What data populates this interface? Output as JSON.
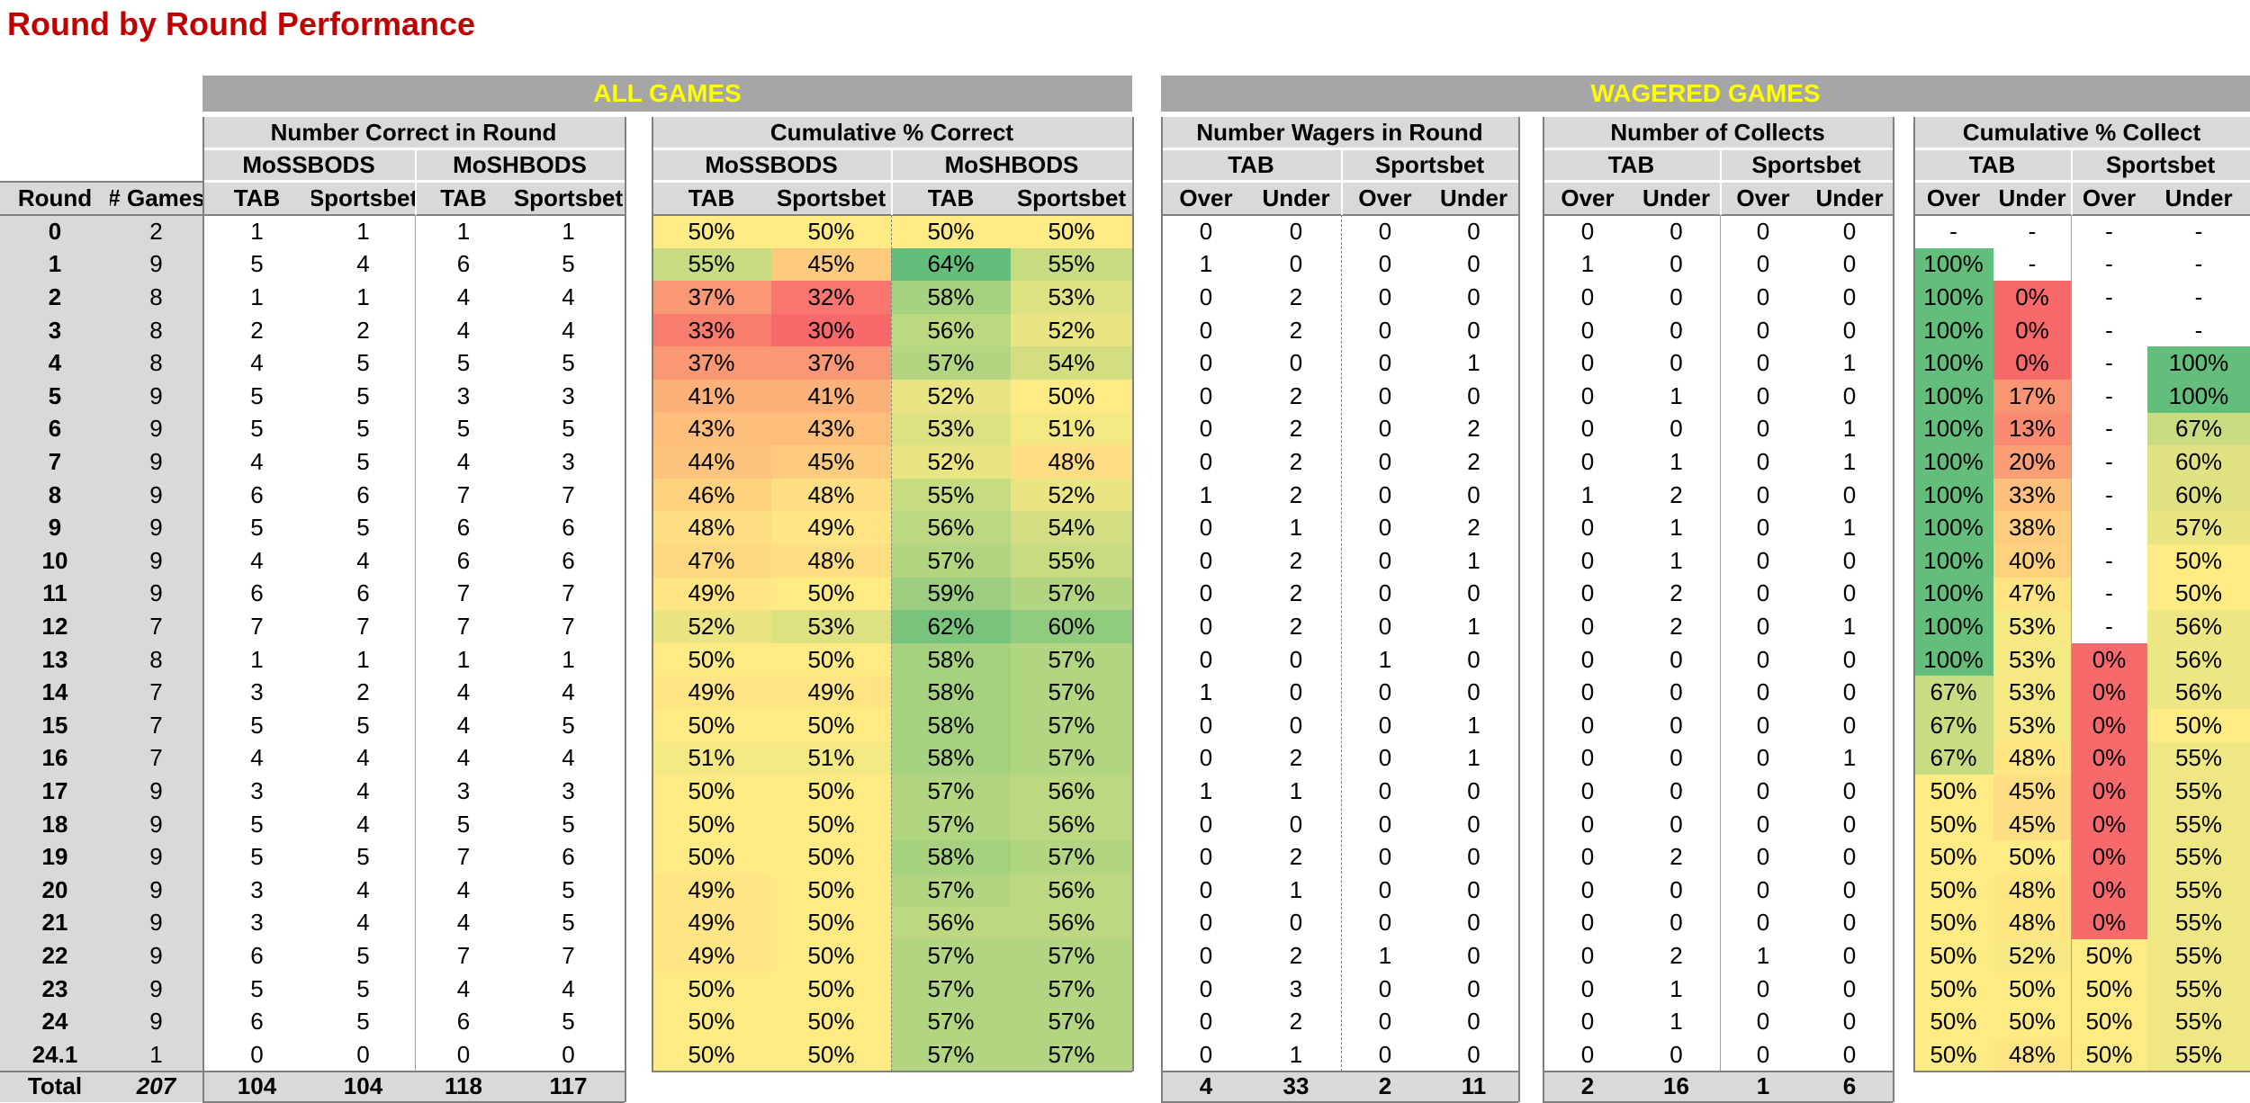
{
  "title": "Round by Round Performance",
  "banners": {
    "all_games": "ALL GAMES",
    "wagered_games": "WAGERED GAMES"
  },
  "groups": [
    {
      "key": "g1",
      "label": "Number Correct in Round",
      "subs": [
        "MoSSBODS",
        "MoSHBODS"
      ],
      "leaf": [
        "TAB",
        "Sportsbet",
        "TAB",
        "Sportsbet"
      ]
    },
    {
      "key": "g2",
      "label": "Cumulative % Correct",
      "subs": [
        "MoSSBODS",
        "MoSHBODS"
      ],
      "leaf": [
        "TAB",
        "Sportsbet",
        "TAB",
        "Sportsbet"
      ]
    },
    {
      "key": "g3",
      "label": "Number Wagers in Round",
      "subs": [
        "TAB",
        "Sportsbet"
      ],
      "leaf": [
        "Over",
        "Under",
        "Over",
        "Under"
      ]
    },
    {
      "key": "g4",
      "label": "Number of Collects",
      "subs": [
        "TAB",
        "Sportsbet"
      ],
      "leaf": [
        "Over",
        "Under",
        "Over",
        "Under"
      ]
    },
    {
      "key": "g5",
      "label": "Cumulative % Collect",
      "subs": [
        "TAB",
        "Sportsbet"
      ],
      "leaf": [
        "Over",
        "Under",
        "Over",
        "Under"
      ]
    }
  ],
  "row_headers": {
    "round": "Round",
    "games": "# Games"
  },
  "rows": [
    {
      "round": "0",
      "games": "2",
      "correct": [
        "1",
        "1",
        "1",
        "1"
      ],
      "cum": [
        "50%",
        "50%",
        "50%",
        "50%"
      ],
      "wagers": [
        "0",
        "0",
        "0",
        "0"
      ],
      "collects": [
        "0",
        "0",
        "0",
        "0"
      ],
      "collect_pct": [
        "-",
        "-",
        "-",
        "-"
      ]
    },
    {
      "round": "1",
      "games": "9",
      "correct": [
        "5",
        "4",
        "6",
        "5"
      ],
      "cum": [
        "55%",
        "45%",
        "64%",
        "55%"
      ],
      "wagers": [
        "1",
        "0",
        "0",
        "0"
      ],
      "collects": [
        "1",
        "0",
        "0",
        "0"
      ],
      "collect_pct": [
        "100%",
        "-",
        "-",
        "-"
      ]
    },
    {
      "round": "2",
      "games": "8",
      "correct": [
        "1",
        "1",
        "4",
        "4"
      ],
      "cum": [
        "37%",
        "32%",
        "58%",
        "53%"
      ],
      "wagers": [
        "0",
        "2",
        "0",
        "0"
      ],
      "collects": [
        "0",
        "0",
        "0",
        "0"
      ],
      "collect_pct": [
        "100%",
        "0%",
        "-",
        "-"
      ]
    },
    {
      "round": "3",
      "games": "8",
      "correct": [
        "2",
        "2",
        "4",
        "4"
      ],
      "cum": [
        "33%",
        "30%",
        "56%",
        "52%"
      ],
      "wagers": [
        "0",
        "2",
        "0",
        "0"
      ],
      "collects": [
        "0",
        "0",
        "0",
        "0"
      ],
      "collect_pct": [
        "100%",
        "0%",
        "-",
        "-"
      ]
    },
    {
      "round": "4",
      "games": "8",
      "correct": [
        "4",
        "5",
        "5",
        "5"
      ],
      "cum": [
        "37%",
        "37%",
        "57%",
        "54%"
      ],
      "wagers": [
        "0",
        "0",
        "0",
        "1"
      ],
      "collects": [
        "0",
        "0",
        "0",
        "1"
      ],
      "collect_pct": [
        "100%",
        "0%",
        "-",
        "100%"
      ]
    },
    {
      "round": "5",
      "games": "9",
      "correct": [
        "5",
        "5",
        "3",
        "3"
      ],
      "cum": [
        "41%",
        "41%",
        "52%",
        "50%"
      ],
      "wagers": [
        "0",
        "2",
        "0",
        "0"
      ],
      "collects": [
        "0",
        "1",
        "0",
        "0"
      ],
      "collect_pct": [
        "100%",
        "17%",
        "-",
        "100%"
      ]
    },
    {
      "round": "6",
      "games": "9",
      "correct": [
        "5",
        "5",
        "5",
        "5"
      ],
      "cum": [
        "43%",
        "43%",
        "53%",
        "51%"
      ],
      "wagers": [
        "0",
        "2",
        "0",
        "2"
      ],
      "collects": [
        "0",
        "0",
        "0",
        "1"
      ],
      "collect_pct": [
        "100%",
        "13%",
        "-",
        "67%"
      ]
    },
    {
      "round": "7",
      "games": "9",
      "correct": [
        "4",
        "5",
        "4",
        "3"
      ],
      "cum": [
        "44%",
        "45%",
        "52%",
        "48%"
      ],
      "wagers": [
        "0",
        "2",
        "0",
        "2"
      ],
      "collects": [
        "0",
        "1",
        "0",
        "1"
      ],
      "collect_pct": [
        "100%",
        "20%",
        "-",
        "60%"
      ]
    },
    {
      "round": "8",
      "games": "9",
      "correct": [
        "6",
        "6",
        "7",
        "7"
      ],
      "cum": [
        "46%",
        "48%",
        "55%",
        "52%"
      ],
      "wagers": [
        "1",
        "2",
        "0",
        "0"
      ],
      "collects": [
        "1",
        "2",
        "0",
        "0"
      ],
      "collect_pct": [
        "100%",
        "33%",
        "-",
        "60%"
      ]
    },
    {
      "round": "9",
      "games": "9",
      "correct": [
        "5",
        "5",
        "6",
        "6"
      ],
      "cum": [
        "48%",
        "49%",
        "56%",
        "54%"
      ],
      "wagers": [
        "0",
        "1",
        "0",
        "2"
      ],
      "collects": [
        "0",
        "1",
        "0",
        "1"
      ],
      "collect_pct": [
        "100%",
        "38%",
        "-",
        "57%"
      ]
    },
    {
      "round": "10",
      "games": "9",
      "correct": [
        "4",
        "4",
        "6",
        "6"
      ],
      "cum": [
        "47%",
        "48%",
        "57%",
        "55%"
      ],
      "wagers": [
        "0",
        "2",
        "0",
        "1"
      ],
      "collects": [
        "0",
        "1",
        "0",
        "0"
      ],
      "collect_pct": [
        "100%",
        "40%",
        "-",
        "50%"
      ]
    },
    {
      "round": "11",
      "games": "9",
      "correct": [
        "6",
        "6",
        "7",
        "7"
      ],
      "cum": [
        "49%",
        "50%",
        "59%",
        "57%"
      ],
      "wagers": [
        "0",
        "2",
        "0",
        "0"
      ],
      "collects": [
        "0",
        "2",
        "0",
        "0"
      ],
      "collect_pct": [
        "100%",
        "47%",
        "-",
        "50%"
      ]
    },
    {
      "round": "12",
      "games": "7",
      "correct": [
        "7",
        "7",
        "7",
        "7"
      ],
      "cum": [
        "52%",
        "53%",
        "62%",
        "60%"
      ],
      "wagers": [
        "0",
        "2",
        "0",
        "1"
      ],
      "collects": [
        "0",
        "2",
        "0",
        "1"
      ],
      "collect_pct": [
        "100%",
        "53%",
        "-",
        "56%"
      ]
    },
    {
      "round": "13",
      "games": "8",
      "correct": [
        "1",
        "1",
        "1",
        "1"
      ],
      "cum": [
        "50%",
        "50%",
        "58%",
        "57%"
      ],
      "wagers": [
        "0",
        "0",
        "1",
        "0"
      ],
      "collects": [
        "0",
        "0",
        "0",
        "0"
      ],
      "collect_pct": [
        "100%",
        "53%",
        "0%",
        "56%"
      ]
    },
    {
      "round": "14",
      "games": "7",
      "correct": [
        "3",
        "2",
        "4",
        "4"
      ],
      "cum": [
        "49%",
        "49%",
        "58%",
        "57%"
      ],
      "wagers": [
        "1",
        "0",
        "0",
        "0"
      ],
      "collects": [
        "0",
        "0",
        "0",
        "0"
      ],
      "collect_pct": [
        "67%",
        "53%",
        "0%",
        "56%"
      ]
    },
    {
      "round": "15",
      "games": "7",
      "correct": [
        "5",
        "5",
        "4",
        "5"
      ],
      "cum": [
        "50%",
        "50%",
        "58%",
        "57%"
      ],
      "wagers": [
        "0",
        "0",
        "0",
        "1"
      ],
      "collects": [
        "0",
        "0",
        "0",
        "0"
      ],
      "collect_pct": [
        "67%",
        "53%",
        "0%",
        "50%"
      ]
    },
    {
      "round": "16",
      "games": "7",
      "correct": [
        "4",
        "4",
        "4",
        "4"
      ],
      "cum": [
        "51%",
        "51%",
        "58%",
        "57%"
      ],
      "wagers": [
        "0",
        "2",
        "0",
        "1"
      ],
      "collects": [
        "0",
        "0",
        "0",
        "1"
      ],
      "collect_pct": [
        "67%",
        "48%",
        "0%",
        "55%"
      ]
    },
    {
      "round": "17",
      "games": "9",
      "correct": [
        "3",
        "4",
        "3",
        "3"
      ],
      "cum": [
        "50%",
        "50%",
        "57%",
        "56%"
      ],
      "wagers": [
        "1",
        "1",
        "0",
        "0"
      ],
      "collects": [
        "0",
        "0",
        "0",
        "0"
      ],
      "collect_pct": [
        "50%",
        "45%",
        "0%",
        "55%"
      ]
    },
    {
      "round": "18",
      "games": "9",
      "correct": [
        "5",
        "4",
        "5",
        "5"
      ],
      "cum": [
        "50%",
        "50%",
        "57%",
        "56%"
      ],
      "wagers": [
        "0",
        "0",
        "0",
        "0"
      ],
      "collects": [
        "0",
        "0",
        "0",
        "0"
      ],
      "collect_pct": [
        "50%",
        "45%",
        "0%",
        "55%"
      ]
    },
    {
      "round": "19",
      "games": "9",
      "correct": [
        "5",
        "5",
        "7",
        "6"
      ],
      "cum": [
        "50%",
        "50%",
        "58%",
        "57%"
      ],
      "wagers": [
        "0",
        "2",
        "0",
        "0"
      ],
      "collects": [
        "0",
        "2",
        "0",
        "0"
      ],
      "collect_pct": [
        "50%",
        "50%",
        "0%",
        "55%"
      ]
    },
    {
      "round": "20",
      "games": "9",
      "correct": [
        "3",
        "4",
        "4",
        "5"
      ],
      "cum": [
        "49%",
        "50%",
        "57%",
        "56%"
      ],
      "wagers": [
        "0",
        "1",
        "0",
        "0"
      ],
      "collects": [
        "0",
        "0",
        "0",
        "0"
      ],
      "collect_pct": [
        "50%",
        "48%",
        "0%",
        "55%"
      ]
    },
    {
      "round": "21",
      "games": "9",
      "correct": [
        "3",
        "4",
        "4",
        "5"
      ],
      "cum": [
        "49%",
        "50%",
        "56%",
        "56%"
      ],
      "wagers": [
        "0",
        "0",
        "0",
        "0"
      ],
      "collects": [
        "0",
        "0",
        "0",
        "0"
      ],
      "collect_pct": [
        "50%",
        "48%",
        "0%",
        "55%"
      ]
    },
    {
      "round": "22",
      "games": "9",
      "correct": [
        "6",
        "5",
        "7",
        "7"
      ],
      "cum": [
        "49%",
        "50%",
        "57%",
        "57%"
      ],
      "wagers": [
        "0",
        "2",
        "1",
        "0"
      ],
      "collects": [
        "0",
        "2",
        "1",
        "0"
      ],
      "collect_pct": [
        "50%",
        "52%",
        "50%",
        "55%"
      ]
    },
    {
      "round": "23",
      "games": "9",
      "correct": [
        "5",
        "5",
        "4",
        "4"
      ],
      "cum": [
        "50%",
        "50%",
        "57%",
        "57%"
      ],
      "wagers": [
        "0",
        "3",
        "0",
        "0"
      ],
      "collects": [
        "0",
        "1",
        "0",
        "0"
      ],
      "collect_pct": [
        "50%",
        "50%",
        "50%",
        "55%"
      ]
    },
    {
      "round": "24",
      "games": "9",
      "correct": [
        "6",
        "5",
        "6",
        "5"
      ],
      "cum": [
        "50%",
        "50%",
        "57%",
        "57%"
      ],
      "wagers": [
        "0",
        "2",
        "0",
        "0"
      ],
      "collects": [
        "0",
        "1",
        "0",
        "0"
      ],
      "collect_pct": [
        "50%",
        "50%",
        "50%",
        "55%"
      ]
    },
    {
      "round": "24.1",
      "games": "1",
      "correct": [
        "0",
        "0",
        "0",
        "0"
      ],
      "cum": [
        "50%",
        "50%",
        "57%",
        "57%"
      ],
      "wagers": [
        "0",
        "1",
        "0",
        "0"
      ],
      "collects": [
        "0",
        "0",
        "0",
        "0"
      ],
      "collect_pct": [
        "50%",
        "48%",
        "50%",
        "55%"
      ]
    }
  ],
  "total": {
    "label": "Total",
    "games": "207",
    "correct": [
      "104",
      "104",
      "118",
      "117"
    ],
    "wagers": [
      "4",
      "33",
      "2",
      "11"
    ],
    "collects": [
      "2",
      "16",
      "1",
      "6"
    ]
  },
  "colors": {
    "title": "#c00000",
    "banner_bg": "#a6a6a6",
    "banner_text": "#ffff00",
    "header_bg": "#d9d9d9",
    "scale_red": "#f8696b",
    "scale_yellow": "#ffeb84",
    "scale_green": "#63be7b"
  }
}
